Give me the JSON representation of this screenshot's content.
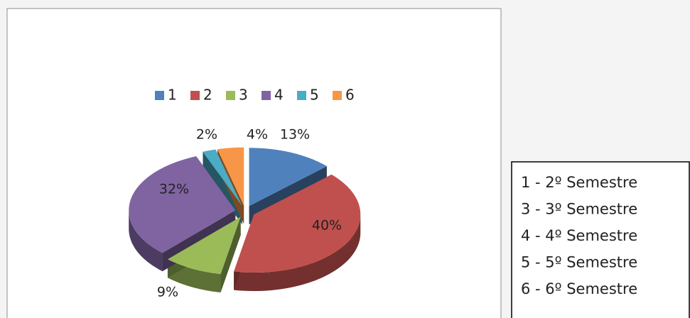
{
  "chart_data": {
    "type": "pie",
    "categories": [
      "1",
      "2",
      "3",
      "4",
      "5",
      "6"
    ],
    "values": [
      13,
      40,
      9,
      32,
      2,
      4
    ],
    "value_labels": [
      "13%",
      "40%",
      "9%",
      "32%",
      "2%",
      "4%"
    ],
    "colors": [
      "#4f81bd",
      "#c0504d",
      "#9bbb59",
      "#8064a2",
      "#4bacc6",
      "#f79646"
    ],
    "legend": "top",
    "annotations": [
      "1 - 2º Semestre",
      "3 - 3º Semestre",
      "4 - 4º Semestre",
      "5 - 5º Semestre",
      "6 - 6º Semestre"
    ]
  }
}
